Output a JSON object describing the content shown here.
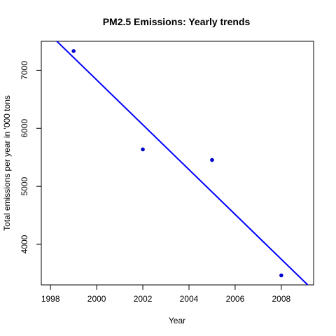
{
  "chart_data": {
    "type": "scatter",
    "title": "PM2.5 Emissions: Yearly trends",
    "xlabel": "Year",
    "ylabel": "Total emissions per year in '000 tons",
    "xlim": [
      1997.6,
      2009.4
    ],
    "ylim": [
      3300,
      7500
    ],
    "x_ticks": [
      1998,
      2000,
      2002,
      2004,
      2006,
      2008
    ],
    "y_ticks": [
      4000,
      5000,
      6000,
      7000
    ],
    "points": [
      {
        "x": 1999,
        "y": 7332
      },
      {
        "x": 2002,
        "y": 5636
      },
      {
        "x": 2005,
        "y": 5454
      },
      {
        "x": 2008,
        "y": 3464
      }
    ],
    "trend_line": {
      "intercept_at_1999": 7220,
      "slope": -386.4
    },
    "point_color": "#0000CD",
    "line_color": "#0000FF",
    "grid": false,
    "legend": "none"
  }
}
